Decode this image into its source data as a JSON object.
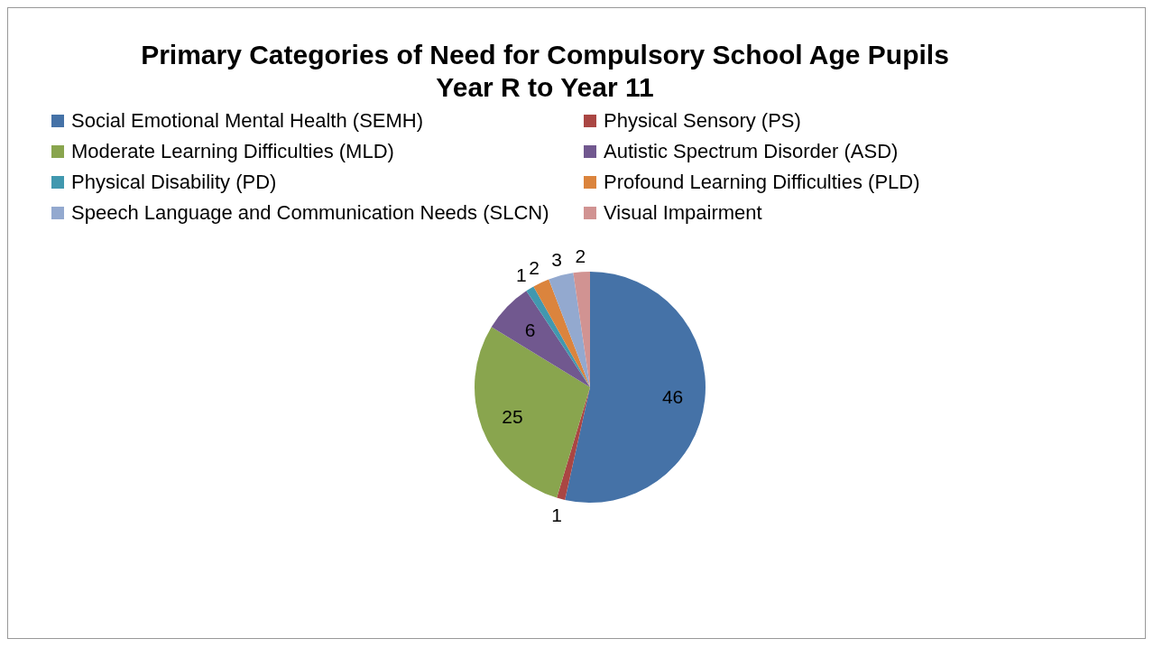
{
  "chart_data": {
    "type": "pie",
    "title": "Primary Categories of Need for Compulsory School Age Pupils\nYear R to Year 11",
    "categories": [
      "Social Emotional Mental Health (SEMH)",
      "Physical Sensory (PS)",
      "Moderate Learning Difficulties (MLD)",
      "Autistic Spectrum Disorder (ASD)",
      "Physical Disability (PD)",
      "Profound Learning Difficulties (PLD)",
      "Speech Language and Communication Needs (SLCN)",
      "Visual Impairment"
    ],
    "values": [
      46,
      1,
      25,
      6,
      1,
      2,
      3,
      2
    ],
    "colors": [
      "#4572a7",
      "#aa4643",
      "#89a54e",
      "#71588f",
      "#4198af",
      "#db843d",
      "#93a9cf",
      "#d19392"
    ],
    "data_labels": true,
    "legend": "top"
  }
}
